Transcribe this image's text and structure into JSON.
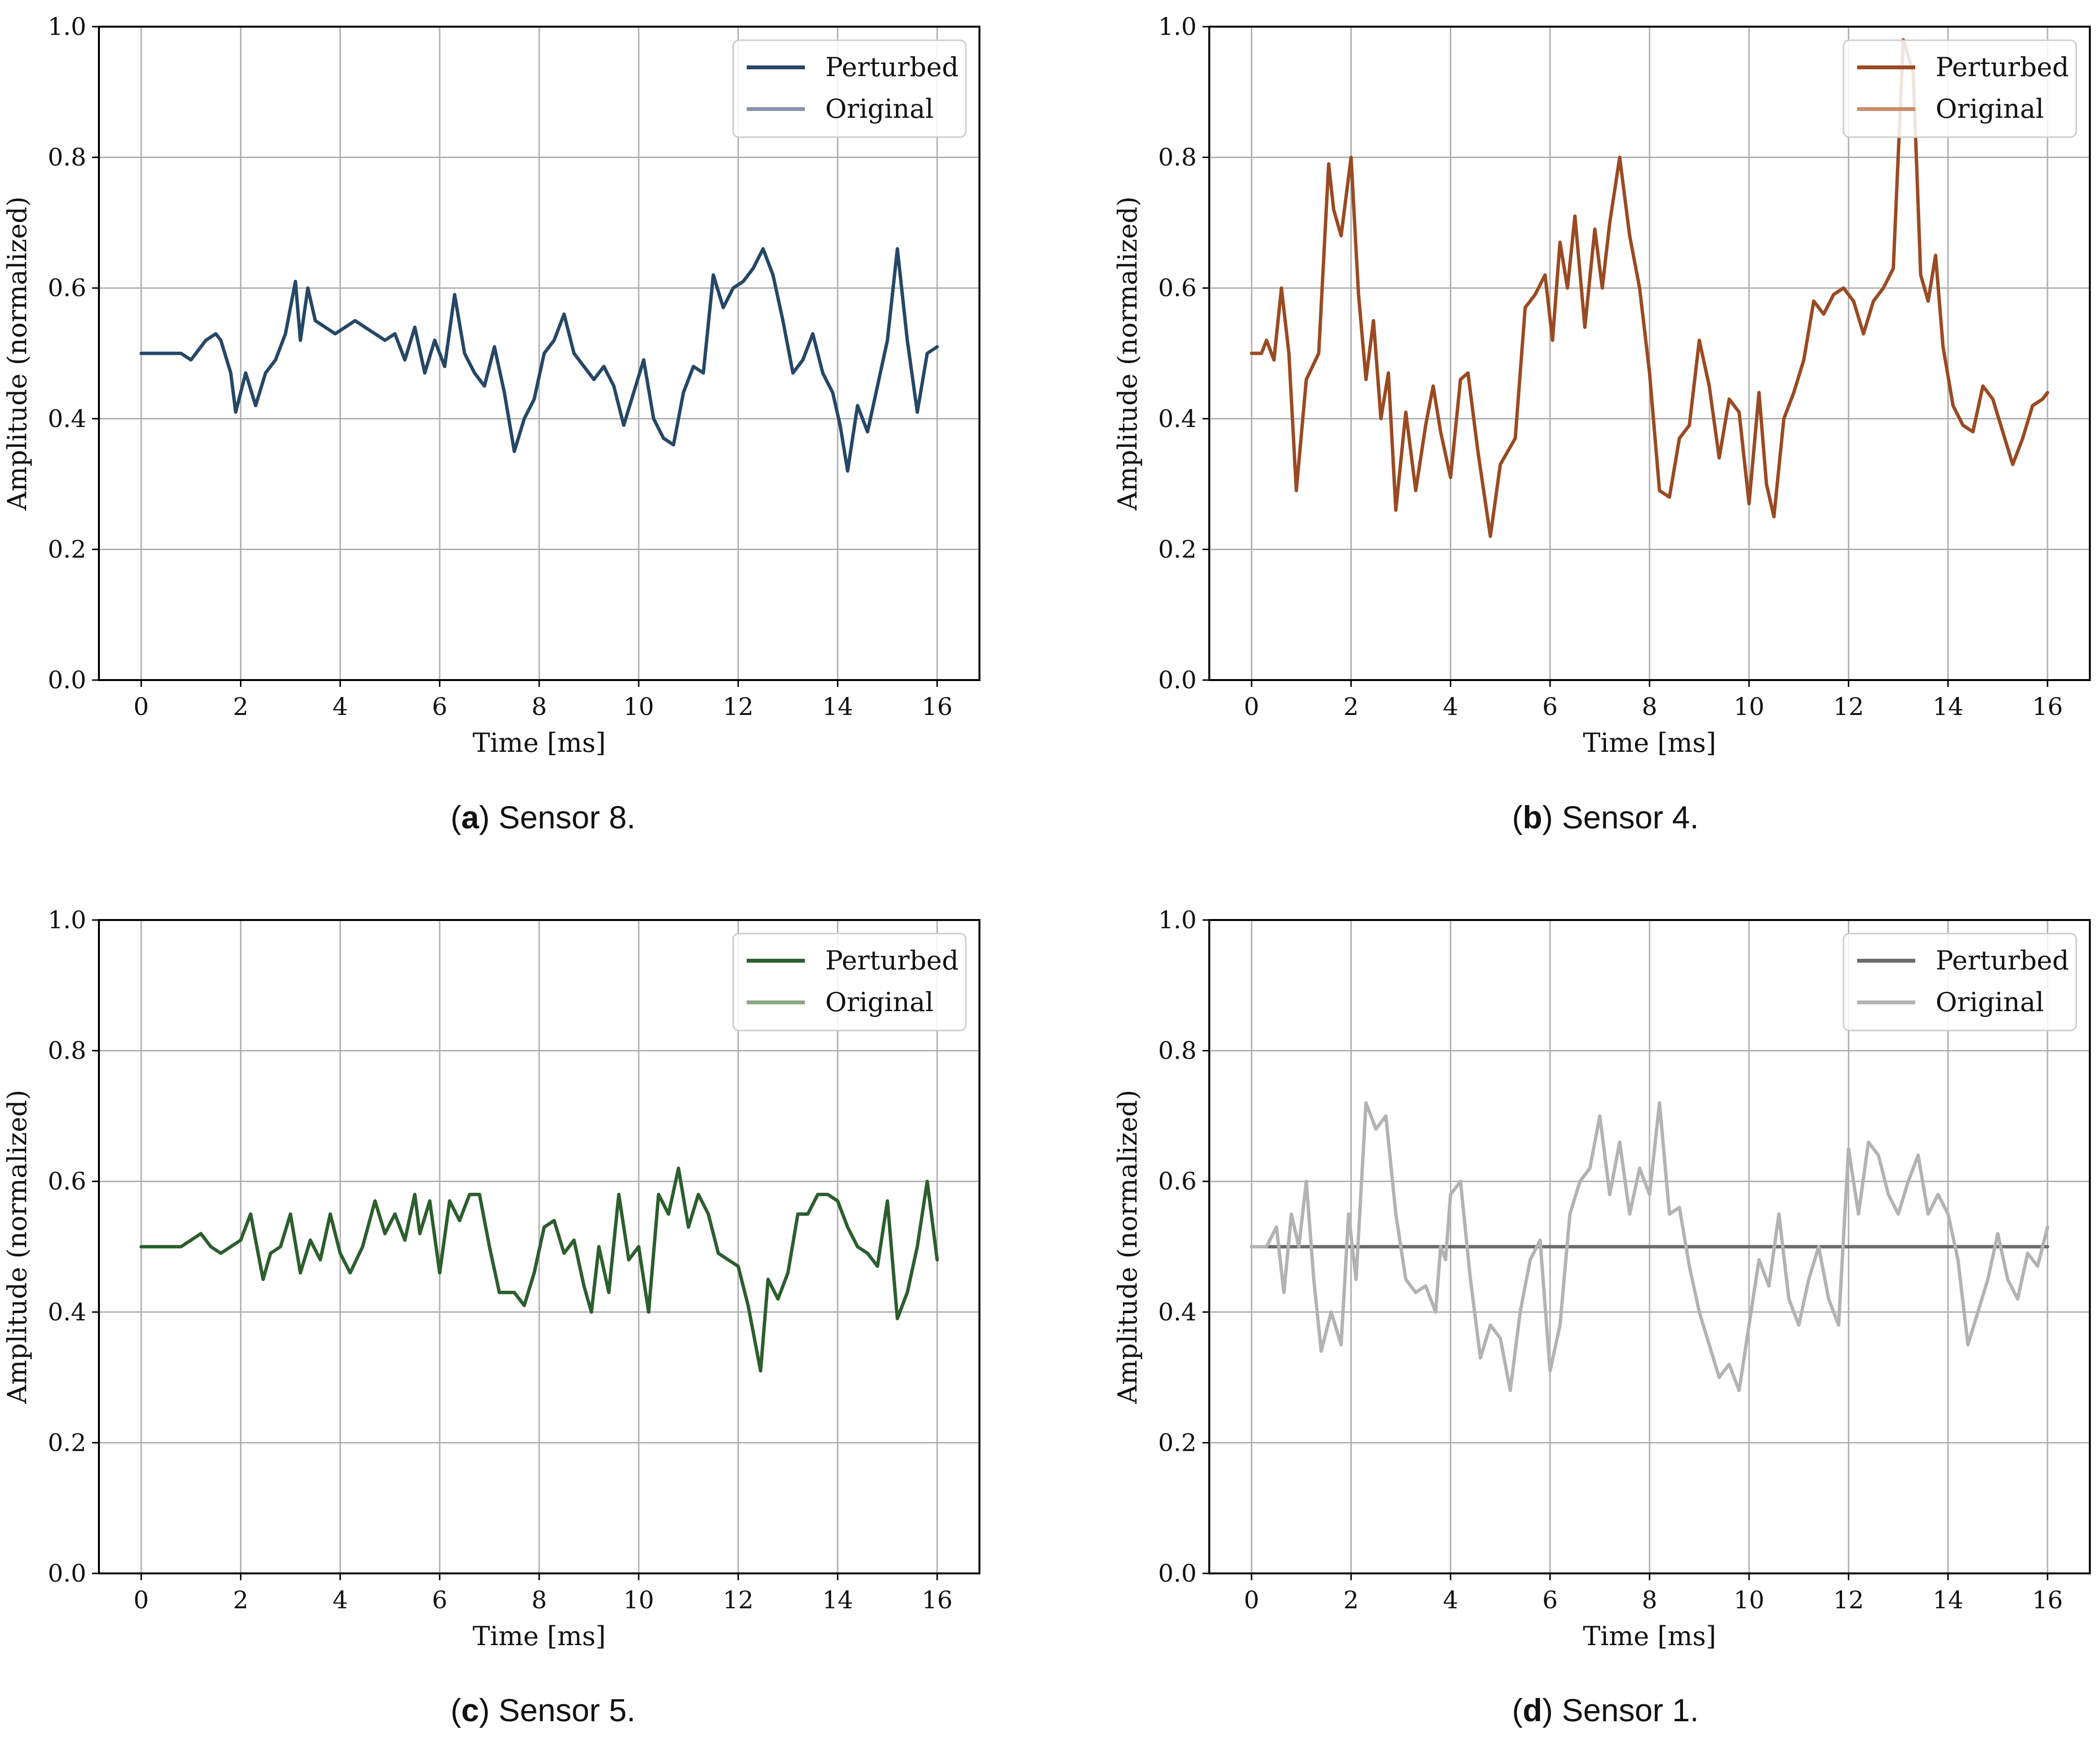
{
  "figure": {
    "panels": [
      {
        "caption_letter": "a",
        "caption_text": "Sensor 8."
      },
      {
        "caption_letter": "b",
        "caption_text": "Sensor 4."
      },
      {
        "caption_letter": "c",
        "caption_text": "Sensor 5."
      },
      {
        "caption_letter": "d",
        "caption_text": "Sensor 1."
      }
    ]
  },
  "chart_data": [
    {
      "type": "line",
      "title": "",
      "caption": "(a) Sensor 8.",
      "xlabel": "Time [ms]",
      "ylabel": "Amplitude (normalized)",
      "xlim": [
        -0.85,
        16.85
      ],
      "ylim": [
        0.0,
        1.0
      ],
      "xticks": [
        0,
        2,
        4,
        6,
        8,
        10,
        12,
        14,
        16
      ],
      "yticks": [
        0.0,
        0.2,
        0.4,
        0.6,
        0.8,
        1.0
      ],
      "xtick_labels": [
        "0",
        "2",
        "4",
        "6",
        "8",
        "10",
        "12",
        "14",
        "16"
      ],
      "ytick_labels": [
        "0.0",
        "0.2",
        "0.4",
        "0.6",
        "0.8",
        "1.0"
      ],
      "grid": true,
      "legend": "upper right",
      "series": [
        {
          "name": "Perturbed",
          "color": "#264766",
          "x": [
            0,
            0.5,
            0.8,
            1.0,
            1.3,
            1.5,
            1.6,
            1.8,
            1.9,
            2.1,
            2.3,
            2.5,
            2.7,
            2.9,
            3.1,
            3.2,
            3.35,
            3.5,
            3.7,
            3.9,
            4.1,
            4.3,
            4.5,
            4.7,
            4.9,
            5.1,
            5.3,
            5.5,
            5.7,
            5.9,
            6.1,
            6.3,
            6.5,
            6.7,
            6.9,
            7.1,
            7.3,
            7.5,
            7.7,
            7.9,
            8.1,
            8.3,
            8.5,
            8.7,
            8.9,
            9.1,
            9.3,
            9.5,
            9.7,
            9.9,
            10.1,
            10.3,
            10.5,
            10.7,
            10.9,
            11.1,
            11.3,
            11.5,
            11.7,
            11.9,
            12.1,
            12.3,
            12.5,
            12.7,
            12.9,
            13.1,
            13.3,
            13.5,
            13.7,
            13.9,
            14.05,
            14.2,
            14.4,
            14.6,
            14.8,
            15.0,
            15.2,
            15.4,
            15.6,
            15.8,
            16.0
          ],
          "y": [
            0.5,
            0.5,
            0.5,
            0.49,
            0.52,
            0.53,
            0.52,
            0.47,
            0.41,
            0.47,
            0.42,
            0.47,
            0.49,
            0.53,
            0.61,
            0.52,
            0.6,
            0.55,
            0.54,
            0.53,
            0.54,
            0.55,
            0.54,
            0.53,
            0.52,
            0.53,
            0.49,
            0.54,
            0.47,
            0.52,
            0.48,
            0.59,
            0.5,
            0.47,
            0.45,
            0.51,
            0.44,
            0.35,
            0.4,
            0.43,
            0.5,
            0.52,
            0.56,
            0.5,
            0.48,
            0.46,
            0.48,
            0.45,
            0.39,
            0.44,
            0.49,
            0.4,
            0.37,
            0.36,
            0.44,
            0.48,
            0.47,
            0.62,
            0.57,
            0.6,
            0.61,
            0.63,
            0.66,
            0.62,
            0.55,
            0.47,
            0.49,
            0.53,
            0.47,
            0.44,
            0.39,
            0.32,
            0.42,
            0.38,
            0.45,
            0.52,
            0.66,
            0.52,
            0.41,
            0.5,
            0.51
          ]
        },
        {
          "name": "Original",
          "color": "#8a93ab",
          "x": [],
          "y": []
        }
      ]
    },
    {
      "type": "line",
      "title": "",
      "caption": "(b) Sensor 4.",
      "xlabel": "Time [ms]",
      "ylabel": "Amplitude (normalized)",
      "xlim": [
        -0.85,
        16.85
      ],
      "ylim": [
        0.0,
        1.0
      ],
      "xticks": [
        0,
        2,
        4,
        6,
        8,
        10,
        12,
        14,
        16
      ],
      "yticks": [
        0.0,
        0.2,
        0.4,
        0.6,
        0.8,
        1.0
      ],
      "xtick_labels": [
        "0",
        "2",
        "4",
        "6",
        "8",
        "10",
        "12",
        "14",
        "16"
      ],
      "ytick_labels": [
        "0.0",
        "0.2",
        "0.4",
        "0.6",
        "0.8",
        "1.0"
      ],
      "grid": true,
      "legend": "upper right",
      "series": [
        {
          "name": "Perturbed",
          "color": "#9a4a22",
          "x": [
            0,
            0.2,
            0.3,
            0.45,
            0.6,
            0.75,
            0.9,
            1.1,
            1.35,
            1.55,
            1.65,
            1.8,
            2.0,
            2.15,
            2.3,
            2.45,
            2.6,
            2.75,
            2.9,
            3.1,
            3.3,
            3.5,
            3.65,
            3.8,
            4.0,
            4.2,
            4.35,
            4.55,
            4.8,
            5.0,
            5.3,
            5.5,
            5.7,
            5.9,
            6.05,
            6.2,
            6.35,
            6.5,
            6.7,
            6.9,
            7.05,
            7.2,
            7.4,
            7.6,
            7.8,
            8.0,
            8.2,
            8.4,
            8.6,
            8.8,
            9.0,
            9.2,
            9.4,
            9.6,
            9.8,
            10.0,
            10.2,
            10.35,
            10.5,
            10.7,
            10.9,
            11.1,
            11.3,
            11.5,
            11.7,
            11.9,
            12.1,
            12.3,
            12.5,
            12.7,
            12.9,
            13.1,
            13.3,
            13.45,
            13.6,
            13.75,
            13.9,
            14.1,
            14.3,
            14.5,
            14.7,
            14.9,
            15.1,
            15.3,
            15.5,
            15.7,
            15.9,
            16.0
          ],
          "y": [
            0.5,
            0.5,
            0.52,
            0.49,
            0.6,
            0.5,
            0.29,
            0.46,
            0.5,
            0.79,
            0.72,
            0.68,
            0.8,
            0.59,
            0.46,
            0.55,
            0.4,
            0.47,
            0.26,
            0.41,
            0.29,
            0.39,
            0.45,
            0.38,
            0.31,
            0.46,
            0.47,
            0.35,
            0.22,
            0.33,
            0.37,
            0.57,
            0.59,
            0.62,
            0.52,
            0.67,
            0.6,
            0.71,
            0.54,
            0.69,
            0.6,
            0.7,
            0.8,
            0.68,
            0.6,
            0.47,
            0.29,
            0.28,
            0.37,
            0.39,
            0.52,
            0.45,
            0.34,
            0.43,
            0.41,
            0.27,
            0.44,
            0.3,
            0.25,
            0.4,
            0.44,
            0.49,
            0.58,
            0.56,
            0.59,
            0.6,
            0.58,
            0.53,
            0.58,
            0.6,
            0.63,
            0.98,
            0.93,
            0.62,
            0.58,
            0.65,
            0.51,
            0.42,
            0.39,
            0.38,
            0.45,
            0.43,
            0.38,
            0.33,
            0.37,
            0.42,
            0.43,
            0.44
          ]
        },
        {
          "name": "Original",
          "color": "#c98f6e",
          "x": [],
          "y": []
        }
      ]
    },
    {
      "type": "line",
      "title": "",
      "caption": "(c) Sensor 5.",
      "xlabel": "Time [ms]",
      "ylabel": "Amplitude (normalized)",
      "xlim": [
        -0.85,
        16.85
      ],
      "ylim": [
        0.0,
        1.0
      ],
      "xticks": [
        0,
        2,
        4,
        6,
        8,
        10,
        12,
        14,
        16
      ],
      "yticks": [
        0.0,
        0.2,
        0.4,
        0.6,
        0.8,
        1.0
      ],
      "xtick_labels": [
        "0",
        "2",
        "4",
        "6",
        "8",
        "10",
        "12",
        "14",
        "16"
      ],
      "ytick_labels": [
        "0.0",
        "0.2",
        "0.4",
        "0.6",
        "0.8",
        "1.0"
      ],
      "grid": true,
      "legend": "upper right",
      "series": [
        {
          "name": "Perturbed",
          "color": "#2c5e2e",
          "x": [
            0,
            0.5,
            0.8,
            1.0,
            1.2,
            1.4,
            1.6,
            1.8,
            2.0,
            2.2,
            2.45,
            2.6,
            2.8,
            3.0,
            3.2,
            3.4,
            3.6,
            3.8,
            4.0,
            4.2,
            4.45,
            4.7,
            4.9,
            5.1,
            5.3,
            5.5,
            5.6,
            5.8,
            6.0,
            6.2,
            6.4,
            6.6,
            6.8,
            7.0,
            7.2,
            7.5,
            7.7,
            7.9,
            8.1,
            8.3,
            8.5,
            8.7,
            8.9,
            9.05,
            9.2,
            9.4,
            9.6,
            9.8,
            10.0,
            10.2,
            10.4,
            10.6,
            10.8,
            11.0,
            11.2,
            11.4,
            11.6,
            11.8,
            12.0,
            12.2,
            12.45,
            12.6,
            12.8,
            13.0,
            13.2,
            13.4,
            13.6,
            13.8,
            14.0,
            14.2,
            14.4,
            14.6,
            14.8,
            15.0,
            15.2,
            15.4,
            15.6,
            15.8,
            16.0
          ],
          "y": [
            0.5,
            0.5,
            0.5,
            0.51,
            0.52,
            0.5,
            0.49,
            0.5,
            0.51,
            0.55,
            0.45,
            0.49,
            0.5,
            0.55,
            0.46,
            0.51,
            0.48,
            0.55,
            0.49,
            0.46,
            0.5,
            0.57,
            0.52,
            0.55,
            0.51,
            0.58,
            0.52,
            0.57,
            0.46,
            0.57,
            0.54,
            0.58,
            0.58,
            0.5,
            0.43,
            0.43,
            0.41,
            0.46,
            0.53,
            0.54,
            0.49,
            0.51,
            0.44,
            0.4,
            0.5,
            0.43,
            0.58,
            0.48,
            0.5,
            0.4,
            0.58,
            0.55,
            0.62,
            0.53,
            0.58,
            0.55,
            0.49,
            0.48,
            0.47,
            0.41,
            0.31,
            0.45,
            0.42,
            0.46,
            0.55,
            0.55,
            0.58,
            0.58,
            0.57,
            0.53,
            0.5,
            0.49,
            0.47,
            0.57,
            0.39,
            0.43,
            0.5,
            0.6,
            0.48
          ]
        },
        {
          "name": "Original",
          "color": "#8aa882",
          "x": [],
          "y": []
        }
      ]
    },
    {
      "type": "line",
      "title": "",
      "caption": "(d) Sensor 1.",
      "xlabel": "Time [ms]",
      "ylabel": "Amplitude (normalized)",
      "xlim": [
        -0.85,
        16.85
      ],
      "ylim": [
        0.0,
        1.0
      ],
      "xticks": [
        0,
        2,
        4,
        6,
        8,
        10,
        12,
        14,
        16
      ],
      "yticks": [
        0.0,
        0.2,
        0.4,
        0.6,
        0.8,
        1.0
      ],
      "xtick_labels": [
        "0",
        "2",
        "4",
        "6",
        "8",
        "10",
        "12",
        "14",
        "16"
      ],
      "ytick_labels": [
        "0.0",
        "0.2",
        "0.4",
        "0.6",
        "0.8",
        "1.0"
      ],
      "grid": true,
      "legend": "upper right",
      "series": [
        {
          "name": "Perturbed",
          "color": "#6b6b6b",
          "x": [
            0,
            16.0
          ],
          "y": [
            0.5,
            0.5
          ]
        },
        {
          "name": "Original",
          "color": "#b3b3b6",
          "x": [
            0,
            0.3,
            0.5,
            0.65,
            0.8,
            0.95,
            1.1,
            1.25,
            1.4,
            1.6,
            1.8,
            1.95,
            2.1,
            2.3,
            2.5,
            2.7,
            2.9,
            3.1,
            3.3,
            3.5,
            3.7,
            3.8,
            3.9,
            4.0,
            4.2,
            4.4,
            4.6,
            4.8,
            5.0,
            5.2,
            5.4,
            5.6,
            5.8,
            6.0,
            6.2,
            6.4,
            6.6,
            6.8,
            7.0,
            7.2,
            7.4,
            7.6,
            7.8,
            8.0,
            8.2,
            8.4,
            8.6,
            8.8,
            9.0,
            9.2,
            9.4,
            9.6,
            9.8,
            10.0,
            10.2,
            10.4,
            10.6,
            10.8,
            11.0,
            11.2,
            11.4,
            11.6,
            11.8,
            12.0,
            12.2,
            12.4,
            12.6,
            12.8,
            13.0,
            13.2,
            13.4,
            13.6,
            13.8,
            14.0,
            14.2,
            14.4,
            14.6,
            14.8,
            15.0,
            15.2,
            15.4,
            15.6,
            15.8,
            16.0
          ],
          "y": [
            0.5,
            0.5,
            0.53,
            0.43,
            0.55,
            0.5,
            0.6,
            0.45,
            0.34,
            0.4,
            0.35,
            0.55,
            0.45,
            0.72,
            0.68,
            0.7,
            0.55,
            0.45,
            0.43,
            0.44,
            0.4,
            0.5,
            0.48,
            0.58,
            0.6,
            0.45,
            0.33,
            0.38,
            0.36,
            0.28,
            0.4,
            0.48,
            0.51,
            0.31,
            0.38,
            0.55,
            0.6,
            0.62,
            0.7,
            0.58,
            0.66,
            0.55,
            0.62,
            0.58,
            0.72,
            0.55,
            0.56,
            0.47,
            0.4,
            0.35,
            0.3,
            0.32,
            0.28,
            0.38,
            0.48,
            0.44,
            0.55,
            0.42,
            0.38,
            0.45,
            0.5,
            0.42,
            0.38,
            0.65,
            0.55,
            0.66,
            0.64,
            0.58,
            0.55,
            0.6,
            0.64,
            0.55,
            0.58,
            0.55,
            0.48,
            0.35,
            0.4,
            0.45,
            0.52,
            0.45,
            0.42,
            0.49,
            0.47,
            0.53
          ]
        }
      ]
    }
  ]
}
